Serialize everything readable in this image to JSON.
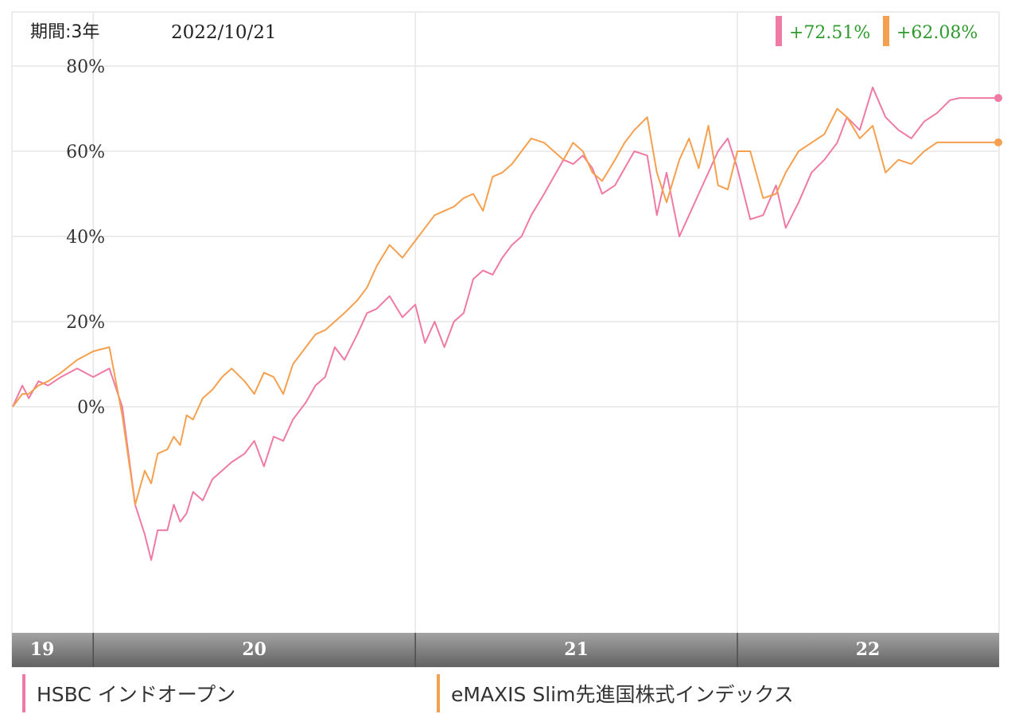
{
  "header": {
    "period_label": "期間:3年",
    "date_label": "2022/10/21"
  },
  "colors": {
    "hsbc": "#ef7aa4",
    "emaxis": "#f5a04e",
    "return_text": "#2e9a2e",
    "grid": "#e6e6e6",
    "axis_band_top": "#9a9a9a",
    "axis_band_bottom": "#6b6b6b"
  },
  "chart_data": {
    "type": "line",
    "title": "",
    "xlabel": "",
    "ylabel": "",
    "x_range": [
      2019.75,
      2022.81
    ],
    "ylim": [
      -55,
      83
    ],
    "y_ticks": [
      0,
      20,
      40,
      60,
      80
    ],
    "y_tick_labels": [
      "0%",
      "20%",
      "40%",
      "60%",
      "80%"
    ],
    "x_tick_labels": [
      {
        "label": "19",
        "start": 2019.75,
        "end": 2020.0
      },
      {
        "label": "20",
        "start": 2020.0,
        "end": 2021.0
      },
      {
        "label": "21",
        "start": 2021.0,
        "end": 2022.0
      },
      {
        "label": "22",
        "start": 2022.0,
        "end": 2022.81
      }
    ],
    "grid": true,
    "legend_position": "bottom",
    "series": [
      {
        "name": "HSBC インドオープン",
        "color_key": "hsbc",
        "last_return": "+72.51%",
        "x": [
          2019.75,
          2019.78,
          2019.8,
          2019.83,
          2019.86,
          2019.9,
          2019.95,
          2020.0,
          2020.05,
          2020.09,
          2020.13,
          2020.16,
          2020.18,
          2020.2,
          2020.23,
          2020.25,
          2020.27,
          2020.29,
          2020.31,
          2020.34,
          2020.37,
          2020.4,
          2020.43,
          2020.47,
          2020.5,
          2020.53,
          2020.56,
          2020.59,
          2020.62,
          2020.66,
          2020.69,
          2020.72,
          2020.75,
          2020.78,
          2020.82,
          2020.85,
          2020.88,
          2020.92,
          2020.96,
          2021.0,
          2021.03,
          2021.06,
          2021.09,
          2021.12,
          2021.15,
          2021.18,
          2021.21,
          2021.24,
          2021.27,
          2021.3,
          2021.33,
          2021.36,
          2021.4,
          2021.43,
          2021.46,
          2021.49,
          2021.52,
          2021.55,
          2021.58,
          2021.62,
          2021.65,
          2021.68,
          2021.72,
          2021.75,
          2021.78,
          2021.82,
          2021.85,
          2021.88,
          2021.91,
          2021.94,
          2021.97,
          2022.0,
          2022.04,
          2022.08,
          2022.12,
          2022.15,
          2022.19,
          2022.23,
          2022.27,
          2022.31,
          2022.34,
          2022.38,
          2022.42,
          2022.46,
          2022.5,
          2022.54,
          2022.58,
          2022.62,
          2022.66,
          2022.69,
          2022.72,
          2022.75,
          2022.78,
          2022.81
        ],
        "y": [
          0,
          5,
          2,
          6,
          5,
          7,
          9,
          7,
          9,
          0,
          -23,
          -30,
          -36,
          -29,
          -29,
          -23,
          -27,
          -25,
          -20,
          -22,
          -17,
          -15,
          -13,
          -11,
          -8,
          -14,
          -7,
          -8,
          -3,
          1,
          5,
          7,
          14,
          11,
          17,
          22,
          23,
          26,
          21,
          24,
          15,
          20,
          14,
          20,
          22,
          30,
          32,
          31,
          35,
          38,
          40,
          45,
          50,
          54,
          58,
          57,
          59,
          56,
          50,
          52,
          56,
          60,
          59,
          45,
          55,
          40,
          45,
          50,
          55,
          60,
          63,
          56,
          44,
          45,
          52,
          42,
          48,
          55,
          58,
          62,
          68,
          65,
          75,
          68,
          65,
          63,
          67,
          69,
          72,
          72.51,
          72.51,
          72.51,
          72.51,
          72.51
        ],
        "note": ""
      },
      {
        "name": "eMAXIS Slim先進国株式インデックス",
        "color_key": "emaxis",
        "last_return": "+62.08%",
        "x": [
          2019.75,
          2019.78,
          2019.8,
          2019.83,
          2019.86,
          2019.9,
          2019.95,
          2020.0,
          2020.05,
          2020.09,
          2020.13,
          2020.16,
          2020.18,
          2020.2,
          2020.23,
          2020.25,
          2020.27,
          2020.29,
          2020.31,
          2020.34,
          2020.37,
          2020.4,
          2020.43,
          2020.47,
          2020.5,
          2020.53,
          2020.56,
          2020.59,
          2020.62,
          2020.66,
          2020.69,
          2020.72,
          2020.75,
          2020.78,
          2020.82,
          2020.85,
          2020.88,
          2020.92,
          2020.96,
          2021.0,
          2021.03,
          2021.06,
          2021.09,
          2021.12,
          2021.15,
          2021.18,
          2021.21,
          2021.24,
          2021.27,
          2021.3,
          2021.33,
          2021.36,
          2021.4,
          2021.43,
          2021.46,
          2021.49,
          2021.52,
          2021.55,
          2021.58,
          2021.62,
          2021.65,
          2021.68,
          2021.72,
          2021.75,
          2021.78,
          2021.82,
          2021.85,
          2021.88,
          2021.91,
          2021.94,
          2021.97,
          2022.0,
          2022.04,
          2022.08,
          2022.12,
          2022.15,
          2022.19,
          2022.23,
          2022.27,
          2022.31,
          2022.34,
          2022.38,
          2022.42,
          2022.46,
          2022.5,
          2022.54,
          2022.58,
          2022.62,
          2022.66,
          2022.69,
          2022.72,
          2022.75,
          2022.78,
          2022.81
        ],
        "y": [
          0,
          3,
          3,
          5,
          6,
          8,
          11,
          13,
          14,
          -2,
          -23,
          -15,
          -18,
          -11,
          -10,
          -7,
          -9,
          -2,
          -3,
          2,
          4,
          7,
          9,
          6,
          3,
          8,
          7,
          3,
          10,
          14,
          17,
          18,
          20,
          22,
          25,
          28,
          33,
          38,
          35,
          39,
          42,
          45,
          46,
          47,
          49,
          50,
          46,
          54,
          55,
          57,
          60,
          63,
          62,
          60,
          58,
          62,
          60,
          55,
          53,
          58,
          62,
          65,
          68,
          55,
          48,
          58,
          63,
          56,
          66,
          52,
          51,
          60,
          60,
          49,
          50,
          55,
          60,
          62,
          64,
          70,
          68,
          63,
          66,
          55,
          58,
          57,
          60,
          62.08,
          62.08,
          62.08,
          62.08,
          62.08,
          62.08,
          62.08
        ],
        "note": ""
      }
    ]
  },
  "legend": {
    "items": [
      {
        "label": "HSBC インドオープン",
        "color_key": "hsbc"
      },
      {
        "label": "eMAXIS Slim先進国株式インデックス",
        "color_key": "emaxis"
      }
    ]
  }
}
